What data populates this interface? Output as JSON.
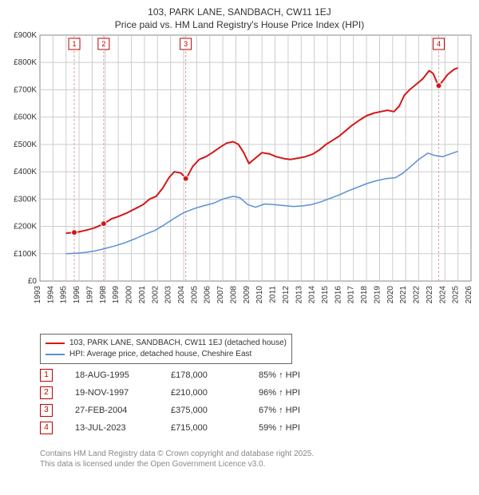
{
  "title_line1": "103, PARK LANE, SANDBACH, CW11 1EJ",
  "title_line2": "Price paid vs. HM Land Registry's House Price Index (HPI)",
  "chart": {
    "type": "line",
    "background_color": "#ffffff",
    "plot_bg": "#ffffff",
    "grid_color": "#cccccc",
    "axis_color": "#888888",
    "yaxis": {
      "min": 0,
      "max": 900,
      "step": 100,
      "prefix": "£",
      "suffix": "K",
      "zero_label": "£0"
    },
    "xaxis": {
      "min": 1993,
      "max": 2026,
      "step": 1
    },
    "series": [
      {
        "name": "103, PARK LANE, SANDBACH, CW11 1EJ (detached house)",
        "color": "#d51717",
        "line_width": 2,
        "data": [
          [
            1995.0,
            175
          ],
          [
            1995.6,
            178
          ],
          [
            1996.0,
            180
          ],
          [
            1996.7,
            188
          ],
          [
            1997.2,
            195
          ],
          [
            1997.9,
            210
          ],
          [
            1998.5,
            228
          ],
          [
            1999.0,
            236
          ],
          [
            1999.7,
            250
          ],
          [
            2000.3,
            265
          ],
          [
            2000.9,
            280
          ],
          [
            2001.4,
            300
          ],
          [
            2001.9,
            310
          ],
          [
            2002.4,
            340
          ],
          [
            2002.9,
            380
          ],
          [
            2003.3,
            400
          ],
          [
            2003.8,
            395
          ],
          [
            2004.2,
            375
          ],
          [
            2004.7,
            420
          ],
          [
            2005.2,
            445
          ],
          [
            2005.7,
            455
          ],
          [
            2006.2,
            470
          ],
          [
            2006.8,
            490
          ],
          [
            2007.3,
            505
          ],
          [
            2007.8,
            510
          ],
          [
            2008.2,
            500
          ],
          [
            2008.6,
            470
          ],
          [
            2009.0,
            430
          ],
          [
            2009.5,
            450
          ],
          [
            2010.0,
            470
          ],
          [
            2010.6,
            465
          ],
          [
            2011.1,
            455
          ],
          [
            2011.7,
            448
          ],
          [
            2012.2,
            445
          ],
          [
            2012.8,
            450
          ],
          [
            2013.3,
            455
          ],
          [
            2013.9,
            465
          ],
          [
            2014.4,
            480
          ],
          [
            2014.9,
            500
          ],
          [
            2015.4,
            515
          ],
          [
            2015.9,
            530
          ],
          [
            2016.4,
            550
          ],
          [
            2016.9,
            570
          ],
          [
            2017.5,
            590
          ],
          [
            2018.0,
            605
          ],
          [
            2018.6,
            615
          ],
          [
            2019.1,
            620
          ],
          [
            2019.6,
            625
          ],
          [
            2020.1,
            620
          ],
          [
            2020.5,
            640
          ],
          [
            2020.9,
            680
          ],
          [
            2021.3,
            700
          ],
          [
            2021.8,
            720
          ],
          [
            2022.3,
            740
          ],
          [
            2022.8,
            770
          ],
          [
            2023.1,
            760
          ],
          [
            2023.5,
            715
          ],
          [
            2023.8,
            730
          ],
          [
            2024.2,
            755
          ],
          [
            2024.7,
            775
          ],
          [
            2025.0,
            780
          ]
        ]
      },
      {
        "name": "HPI: Average price, detached house, Cheshire East",
        "color": "#5b8fd6",
        "line_width": 1.5,
        "data": [
          [
            1995.0,
            100
          ],
          [
            1995.8,
            102
          ],
          [
            1996.5,
            105
          ],
          [
            1997.2,
            110
          ],
          [
            1997.9,
            118
          ],
          [
            1998.7,
            128
          ],
          [
            1999.5,
            140
          ],
          [
            2000.3,
            155
          ],
          [
            2001.0,
            170
          ],
          [
            2001.8,
            185
          ],
          [
            2002.5,
            205
          ],
          [
            2003.3,
            230
          ],
          [
            2004.0,
            250
          ],
          [
            2004.8,
            265
          ],
          [
            2005.5,
            275
          ],
          [
            2006.3,
            285
          ],
          [
            2007.0,
            300
          ],
          [
            2007.8,
            310
          ],
          [
            2008.3,
            305
          ],
          [
            2008.9,
            280
          ],
          [
            2009.5,
            270
          ],
          [
            2010.2,
            282
          ],
          [
            2010.9,
            280
          ],
          [
            2011.7,
            276
          ],
          [
            2012.4,
            273
          ],
          [
            2013.1,
            275
          ],
          [
            2013.8,
            280
          ],
          [
            2014.5,
            290
          ],
          [
            2015.2,
            302
          ],
          [
            2015.9,
            315
          ],
          [
            2016.6,
            330
          ],
          [
            2017.4,
            345
          ],
          [
            2018.1,
            358
          ],
          [
            2018.8,
            368
          ],
          [
            2019.5,
            375
          ],
          [
            2020.2,
            378
          ],
          [
            2020.8,
            395
          ],
          [
            2021.4,
            420
          ],
          [
            2022.0,
            445
          ],
          [
            2022.7,
            468
          ],
          [
            2023.2,
            460
          ],
          [
            2023.8,
            455
          ],
          [
            2024.4,
            465
          ],
          [
            2025.0,
            475
          ]
        ]
      }
    ],
    "sale_markers": [
      {
        "n": "1",
        "year": 1995.63,
        "price": 178
      },
      {
        "n": "2",
        "year": 1997.88,
        "price": 210
      },
      {
        "n": "3",
        "year": 2004.16,
        "price": 375
      },
      {
        "n": "4",
        "year": 2023.53,
        "price": 715
      }
    ]
  },
  "legend": [
    {
      "color": "#d51717",
      "label": "103, PARK LANE, SANDBACH, CW11 1EJ (detached house)"
    },
    {
      "color": "#5b8fd6",
      "label": "HPI: Average price, detached house, Cheshire East"
    }
  ],
  "events": [
    {
      "n": "1",
      "date": "18-AUG-1995",
      "price": "£178,000",
      "hpi": "85% ↑ HPI"
    },
    {
      "n": "2",
      "date": "19-NOV-1997",
      "price": "£210,000",
      "hpi": "96% ↑ HPI"
    },
    {
      "n": "3",
      "date": "27-FEB-2004",
      "price": "£375,000",
      "hpi": "67% ↑ HPI"
    },
    {
      "n": "4",
      "date": "13-JUL-2023",
      "price": "£715,000",
      "hpi": "59% ↑ HPI"
    }
  ],
  "footer_line1": "Contains HM Land Registry data © Crown copyright and database right 2025.",
  "footer_line2": "This data is licensed under the Open Government Licence v3.0."
}
